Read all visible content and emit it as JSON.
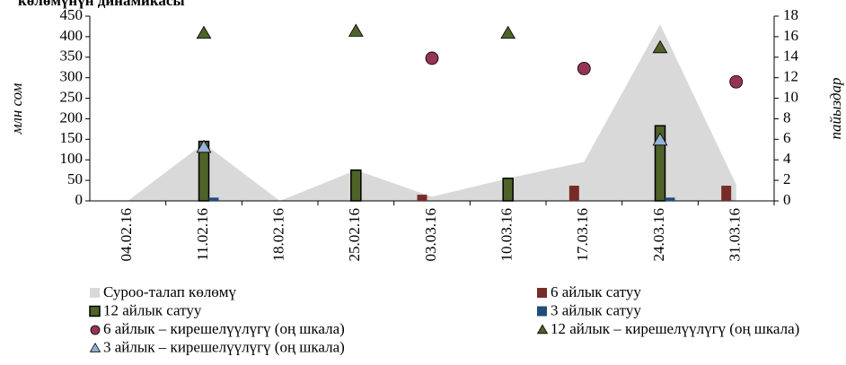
{
  "chart_data": {
    "type": "bar",
    "title": "көлөмүнүн динамикасы",
    "y_label": "млн сом",
    "y2_label": "пайыздар",
    "categories": [
      "04.02.16",
      "11.02.16",
      "18.02.16",
      "25.02.16",
      "03.03.16",
      "10.03.16",
      "17.03.16",
      "24.03.16",
      "31.03.16"
    ],
    "ylim": [
      0,
      450
    ],
    "yticks": [
      0,
      50,
      100,
      150,
      200,
      250,
      300,
      350,
      400,
      450
    ],
    "y2lim": [
      0,
      18
    ],
    "y2ticks": [
      0,
      2,
      4,
      6,
      8,
      10,
      12,
      14,
      16,
      18
    ],
    "series": [
      {
        "name": "Суроо-талап көлөмү",
        "kind": "area",
        "color": "#d9d9d9",
        "values": [
          0,
          140,
          0,
          75,
          10,
          55,
          95,
          430,
          40
        ]
      },
      {
        "name": "6 айлык сатуу",
        "kind": "bar",
        "offset": -1,
        "color": "#772c2a",
        "values": [
          null,
          null,
          null,
          null,
          15,
          null,
          37,
          null,
          37
        ]
      },
      {
        "name": "12 айлык сатуу",
        "kind": "bar",
        "offset": 0,
        "color": "#4f6228",
        "values": [
          null,
          145,
          null,
          75,
          null,
          55,
          null,
          183,
          null
        ]
      },
      {
        "name": "3 айлык сатуу",
        "kind": "bar",
        "offset": 1,
        "color": "#1f4e79",
        "values": [
          null,
          8,
          null,
          null,
          null,
          null,
          null,
          8,
          null
        ]
      },
      {
        "name": "6 айлык – кирешелүүлүгү (оң шкала)",
        "kind": "scatter",
        "marker": "circle",
        "axis": "y2",
        "color": "#953553",
        "values": [
          null,
          null,
          null,
          null,
          13.9,
          null,
          12.9,
          null,
          11.6
        ]
      },
      {
        "name": "12 айлык – кирешелүүлүгү (оң шкала)",
        "kind": "scatter",
        "marker": "triangle",
        "axis": "y2",
        "color": "#4f6228",
        "values": [
          null,
          16.3,
          null,
          16.5,
          null,
          16.3,
          null,
          14.9,
          null
        ]
      },
      {
        "name": "3 айлык – кирешелүүлүгү (оң шкала)",
        "kind": "scatter",
        "marker": "triangle",
        "axis": "y2",
        "color": "#95b3d7",
        "values": [
          null,
          5.2,
          null,
          null,
          null,
          null,
          null,
          5.9,
          null
        ]
      }
    ]
  }
}
